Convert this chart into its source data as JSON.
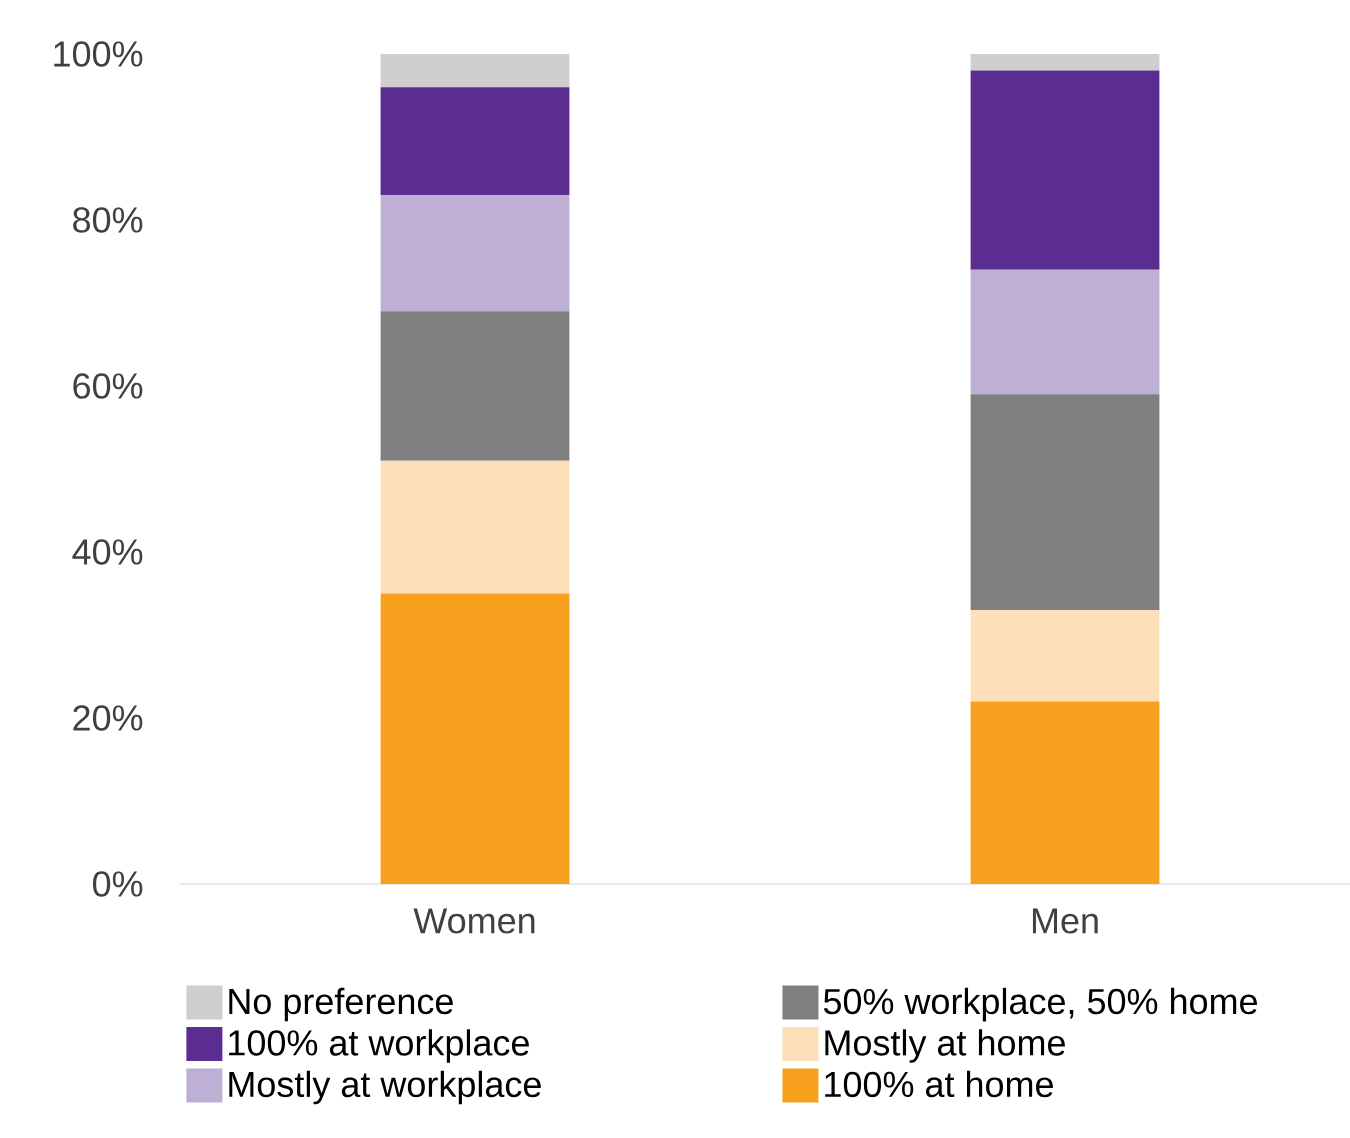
{
  "chart_data": {
    "type": "bar",
    "stacked": true,
    "categories": [
      "Women",
      "Men"
    ],
    "series": [
      {
        "name": "100% at home",
        "color": "#f7a01e",
        "values": [
          35,
          22
        ]
      },
      {
        "name": "Mostly at home",
        "color": "#fde0b9",
        "values": [
          16,
          11
        ]
      },
      {
        "name": "50% workplace, 50% home",
        "color": "#7f7f7f",
        "values": [
          18,
          26
        ]
      },
      {
        "name": "Mostly at workplace",
        "color": "#bdb0d4",
        "values": [
          14,
          15
        ]
      },
      {
        "name": "100% at workplace",
        "color": "#5c2d91",
        "values": [
          13,
          24
        ]
      },
      {
        "name": "No preference",
        "color": "#d0cece",
        "values": [
          4,
          2
        ]
      }
    ],
    "ylim": [
      0,
      100
    ],
    "yticks": [
      {
        "value": 0,
        "label": "0%"
      },
      {
        "value": 20,
        "label": "20%"
      },
      {
        "value": 40,
        "label": "40%"
      },
      {
        "value": 60,
        "label": "60%"
      },
      {
        "value": 80,
        "label": "80%"
      },
      {
        "value": 100,
        "label": "100%"
      }
    ],
    "legend": "bottom"
  }
}
